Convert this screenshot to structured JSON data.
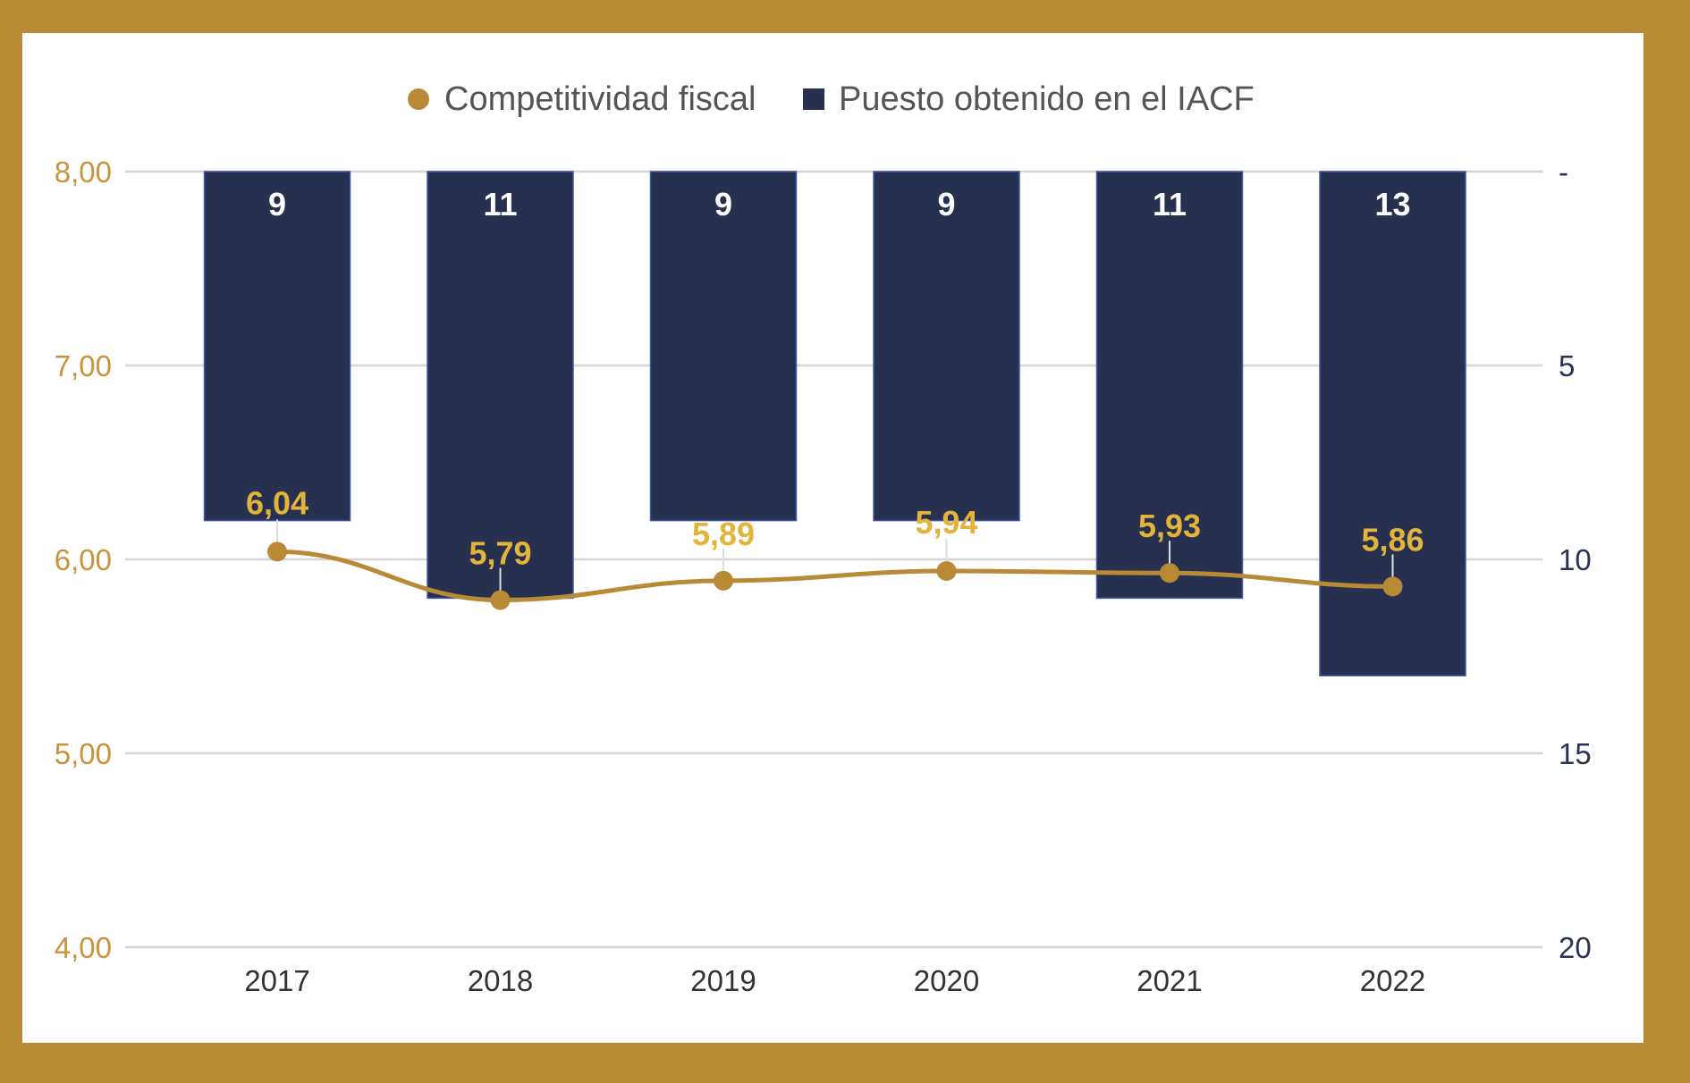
{
  "chart_data": {
    "type": "bar",
    "categories": [
      "2017",
      "2018",
      "2019",
      "2020",
      "2021",
      "2022"
    ],
    "series": [
      {
        "name": "Competitividad fiscal",
        "type": "line",
        "axis": "left",
        "values": [
          6.04,
          5.79,
          5.89,
          5.94,
          5.93,
          5.86
        ],
        "labels": [
          "6,04",
          "5,79",
          "5,89",
          "5,94",
          "5,93",
          "5,86"
        ],
        "color": "#b98a36",
        "label_color": "#e2b53a"
      },
      {
        "name": "Puesto obtenido en el IACF",
        "type": "bar",
        "axis": "right",
        "values": [
          9,
          11,
          9,
          9,
          11,
          13
        ],
        "labels": [
          "9",
          "11",
          "9",
          "9",
          "11",
          "13"
        ],
        "color": "#283050",
        "label_color": "#ffffff"
      }
    ],
    "y_left": {
      "range": [
        4,
        8
      ],
      "ticks": [
        4,
        5,
        6,
        7,
        8
      ],
      "tick_labels": [
        "4,00",
        "5,00",
        "6,00",
        "7,00",
        "8,00"
      ],
      "color": "#c9933c"
    },
    "y_right": {
      "range": [
        0,
        20
      ],
      "reversed": true,
      "ticks": [
        0,
        5,
        10,
        15,
        20
      ],
      "tick_labels": [
        "-",
        "5",
        "10",
        "15",
        "20"
      ],
      "color": "#2b3154"
    },
    "title": "",
    "xlabel": "",
    "grid": true,
    "legend": "top-center",
    "frame_color": "#b98a36",
    "background": "#ffffff"
  }
}
